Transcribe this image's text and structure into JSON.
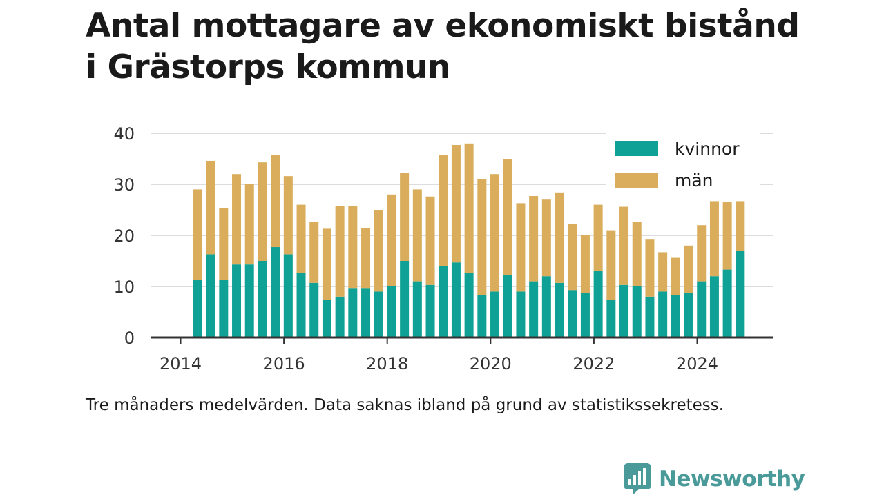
{
  "title_line1": "Antal mottagare av ekonomiskt bistånd",
  "title_line2": "i Grästorps kommun",
  "note": "Tre månaders medelvärden. Data saknas ibland på grund av statistikssekretess.",
  "brand": {
    "name": "Newsworthy",
    "icon": "newsworthy-logo-icon",
    "color": "#4a9a9a"
  },
  "colors": {
    "kvinnor": "#0fa195",
    "man": "#d9ad5b",
    "grid": "#dddddd",
    "axis": "#333333"
  },
  "chart_data": {
    "type": "bar",
    "stacked": true,
    "title": "Antal mottagare av ekonomiskt bistånd i Grästorps kommun",
    "x_ticks": [
      "2014",
      "2016",
      "2018",
      "2020",
      "2022",
      "2024"
    ],
    "y_ticks": [
      "0",
      "10",
      "20",
      "30",
      "40"
    ],
    "ylim": [
      0,
      40
    ],
    "grid": true,
    "legend_position": "top-right",
    "x": [
      "2014-05",
      "2014-08",
      "2014-11",
      "2015-02",
      "2015-05",
      "2015-08",
      "2015-11",
      "2016-02",
      "2016-05",
      "2016-08",
      "2016-11",
      "2017-02",
      "2017-05",
      "2017-08",
      "2017-11",
      "2018-02",
      "2018-05",
      "2018-08",
      "2018-11",
      "2019-02",
      "2019-05",
      "2019-08",
      "2019-11",
      "2020-02",
      "2020-05",
      "2020-08",
      "2020-11",
      "2021-02",
      "2021-05",
      "2021-08",
      "2021-11",
      "2022-02",
      "2022-05",
      "2022-08",
      "2022-11",
      "2023-02",
      "2023-05",
      "2023-08",
      "2023-11",
      "2024-02",
      "2024-05",
      "2024-08",
      "2024-11"
    ],
    "series": [
      {
        "name": "kvinnor",
        "values": [
          11.3,
          16.3,
          11.3,
          14.3,
          14.3,
          15.0,
          17.7,
          16.3,
          12.7,
          10.7,
          7.3,
          8.0,
          9.7,
          9.7,
          9.0,
          10.0,
          15.0,
          11.0,
          10.3,
          14.0,
          14.7,
          12.7,
          8.3,
          9.0,
          12.3,
          9.0,
          11.0,
          12.0,
          10.7,
          9.3,
          8.7,
          13.0,
          7.3,
          10.3,
          10.0,
          8.0,
          9.0,
          8.3,
          8.7,
          11.0,
          12.0,
          13.3,
          17.0
        ]
      },
      {
        "name": "män",
        "values": [
          17.7,
          18.3,
          14.0,
          17.7,
          15.7,
          19.3,
          18.0,
          15.3,
          13.3,
          12.0,
          14.0,
          17.7,
          16.0,
          11.7,
          16.0,
          18.0,
          17.3,
          18.0,
          17.3,
          21.7,
          23.0,
          25.3,
          22.7,
          23.0,
          22.7,
          17.3,
          16.7,
          15.0,
          17.7,
          13.0,
          11.3,
          13.0,
          13.7,
          15.3,
          12.7,
          11.3,
          7.7,
          7.3,
          9.3,
          11.0,
          14.7,
          13.3,
          9.7
        ]
      }
    ]
  }
}
